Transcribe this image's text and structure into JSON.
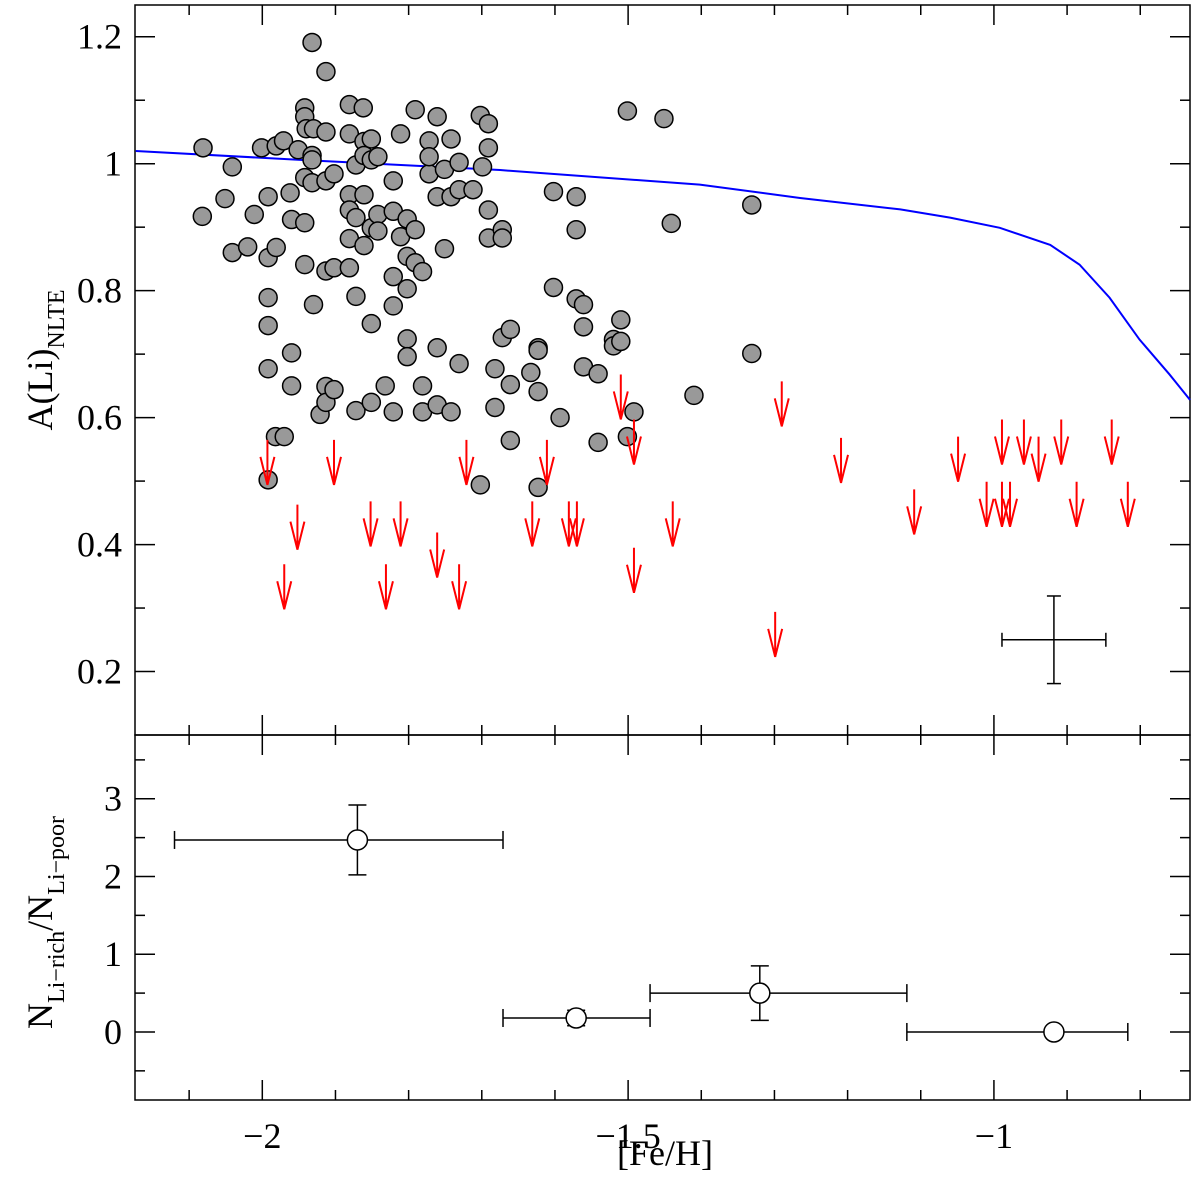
{
  "chart_data": [
    {
      "type": "scatter",
      "ylabel": "A(Li)",
      "ylabel_sub": "NLTE",
      "xlim": [
        -2.174,
        -0.732
      ],
      "ylim": [
        0.1,
        1.25
      ],
      "yticks": [
        0.2,
        0.4,
        0.6,
        0.8,
        1,
        1.2
      ],
      "yminor": [
        0.3,
        0.5,
        0.7,
        0.9,
        1.1
      ],
      "points": {
        "color": "#999999",
        "x": [
          -2.081,
          -2.082,
          -2.041,
          -2.051,
          -2.041,
          -2.02,
          -2.011,
          -2.001,
          -1.992,
          -1.992,
          -1.981,
          -1.992,
          -1.992,
          -1.992,
          -1.982,
          -1.97,
          -1.992,
          -1.981,
          -1.971,
          -1.962,
          -1.96,
          -1.96,
          -1.96,
          -1.951,
          -1.942,
          -1.942,
          -1.94,
          -1.942,
          -1.942,
          -1.942,
          -1.932,
          -1.932,
          -1.932,
          -1.932,
          -1.93,
          -1.93,
          -1.921,
          -1.913,
          -1.913,
          -1.913,
          -1.913,
          -1.913,
          -1.913,
          -1.902,
          -1.902,
          -1.902,
          -1.881,
          -1.881,
          -1.881,
          -1.881,
          -1.881,
          -1.881,
          -1.872,
          -1.872,
          -1.872,
          -1.872,
          -1.862,
          -1.861,
          -1.861,
          -1.861,
          -1.861,
          -1.851,
          -1.851,
          -1.851,
          -1.851,
          -1.851,
          -1.842,
          -1.842,
          -1.842,
          -1.832,
          -1.821,
          -1.821,
          -1.821,
          -1.821,
          -1.821,
          -1.811,
          -1.811,
          -1.802,
          -1.802,
          -1.802,
          -1.802,
          -1.802,
          -1.791,
          -1.791,
          -1.791,
          -1.781,
          -1.781,
          -1.781,
          -1.772,
          -1.772,
          -1.772,
          -1.761,
          -1.761,
          -1.761,
          -1.761,
          -1.751,
          -1.751,
          -1.742,
          -1.742,
          -1.742,
          -1.731,
          -1.731,
          -1.731,
          -1.712,
          -1.702,
          -1.702,
          -1.699,
          -1.691,
          -1.691,
          -1.691,
          -1.691,
          -1.682,
          -1.682,
          -1.672,
          -1.672,
          -1.672,
          -1.661,
          -1.661,
          -1.661,
          -1.633,
          -1.623,
          -1.623,
          -1.623,
          -1.623,
          -1.602,
          -1.602,
          -1.593,
          -1.571,
          -1.571,
          -1.571,
          -1.561,
          -1.561,
          -1.561,
          -1.541,
          -1.541,
          -1.52,
          -1.52,
          -1.51,
          -1.51,
          -1.501,
          -1.501,
          -1.492,
          -1.451,
          -1.441,
          -1.41,
          -1.331,
          -1.331
        ],
        "y": [
          1.025,
          0.917,
          0.995,
          0.945,
          0.86,
          0.869,
          0.92,
          1.025,
          0.948,
          0.852,
          0.868,
          0.789,
          0.745,
          0.677,
          0.57,
          0.57,
          0.502,
          1.028,
          1.036,
          0.954,
          0.912,
          0.702,
          0.65,
          1.022,
          1.088,
          1.074,
          1.055,
          0.978,
          0.907,
          0.841,
          1.191,
          1.013,
          1.006,
          0.97,
          0.778,
          1.055,
          0.605,
          1.145,
          1.05,
          0.973,
          0.831,
          0.649,
          0.624,
          0.984,
          0.836,
          0.644,
          1.093,
          1.047,
          0.951,
          0.927,
          0.882,
          0.836,
          0.998,
          0.915,
          0.791,
          0.611,
          1.088,
          1.035,
          1.013,
          0.951,
          0.871,
          1.039,
          1.006,
          0.899,
          0.748,
          0.624,
          1.011,
          0.92,
          0.894,
          0.65,
          0.973,
          0.925,
          0.822,
          0.776,
          0.609,
          1.047,
          0.885,
          0.913,
          0.854,
          0.803,
          0.724,
          0.696,
          1.085,
          0.896,
          0.844,
          0.83,
          0.65,
          0.609,
          1.036,
          0.984,
          1.011,
          1.074,
          0.948,
          0.71,
          0.62,
          0.991,
          0.866,
          1.039,
          0.948,
          0.609,
          0.959,
          1.002,
          0.685,
          0.959,
          1.076,
          0.494,
          0.995,
          1.063,
          1.025,
          0.927,
          0.883,
          0.677,
          0.616,
          0.896,
          0.883,
          0.726,
          0.739,
          0.652,
          0.564,
          0.671,
          0.71,
          0.706,
          0.641,
          0.49,
          0.956,
          0.805,
          0.6,
          0.948,
          0.896,
          0.787,
          0.778,
          0.743,
          0.68,
          0.669,
          0.561,
          0.723,
          0.713,
          0.72,
          0.754,
          1.083,
          0.57,
          0.609,
          1.071,
          0.906,
          0.635,
          0.935,
          0.701
        ]
      },
      "limits": {
        "color": "#ff0000",
        "x": [
          -1.993,
          -1.902,
          -1.952,
          -1.97,
          -1.852,
          -1.811,
          -1.831,
          -1.761,
          -1.731,
          -1.721,
          -1.631,
          -1.611,
          -1.581,
          -1.57,
          -1.51,
          -1.492,
          -1.492,
          -1.439,
          -1.29,
          -1.299,
          -1.209,
          -1.109,
          -1.049,
          -1.01,
          -0.989,
          -0.989,
          -0.978,
          -0.959,
          -0.939,
          -0.908,
          -0.887,
          -0.839,
          -0.817
        ],
        "y": [
          0.565,
          0.565,
          0.463,
          0.369,
          0.468,
          0.468,
          0.369,
          0.419,
          0.369,
          0.565,
          0.468,
          0.565,
          0.468,
          0.468,
          0.668,
          0.597,
          0.395,
          0.468,
          0.657,
          0.294,
          0.568,
          0.487,
          0.57,
          0.499,
          0.597,
          0.499,
          0.499,
          0.597,
          0.57,
          0.597,
          0.499,
          0.597,
          0.499
        ]
      },
      "curve": {
        "color": "#0000ff",
        "x": [
          -2.173,
          -1.948,
          -1.675,
          -1.402,
          -1.265,
          -1.128,
          -1.06,
          -0.992,
          -0.923,
          -0.883,
          -0.842,
          -0.801,
          -0.76,
          -0.732
        ],
        "y": [
          1.02,
          1.006,
          0.99,
          0.967,
          0.946,
          0.928,
          0.915,
          0.899,
          0.872,
          0.841,
          0.789,
          0.723,
          0.668,
          0.628
        ]
      },
      "errorbar": {
        "x": -0.918,
        "y": 0.25,
        "xerr": 0.071,
        "yerr": 0.069
      }
    },
    {
      "type": "errorbar",
      "xlabel": "[Fe/H]",
      "ylabel_parts": [
        {
          "text": "N"
        },
        {
          "text": "Li−rich",
          "sub": true
        },
        {
          "text": "/N"
        },
        {
          "text": "Li−poor",
          "sub": true
        }
      ],
      "xlim": [
        -2.174,
        -0.732
      ],
      "ylim": [
        -0.875,
        3.82
      ],
      "xticks": [
        {
          "value": -2,
          "label": "−2"
        },
        {
          "value": -1.5,
          "label": "−1.5"
        },
        {
          "value": -1,
          "label": "−1"
        }
      ],
      "xminor": [
        -2.1,
        -1.9,
        -1.8,
        -1.7,
        -1.6,
        -1.4,
        -1.3,
        -1.2,
        -1.1,
        -0.9,
        -0.8
      ],
      "yticks": [
        0,
        1,
        2,
        3
      ],
      "yminor": [
        -0.5,
        0.5,
        1.5,
        2.5,
        3.5
      ],
      "x": [
        -1.87,
        -1.571,
        -1.32,
        -0.918
      ],
      "values": [
        2.47,
        0.18,
        0.5,
        0
      ],
      "xmin": [
        -2.12,
        -1.671,
        -1.47,
        -1.119
      ],
      "xmax": [
        -1.671,
        -1.47,
        -1.119,
        -0.817
      ],
      "yerr": [
        0.45,
        0.1,
        0.35,
        null
      ]
    }
  ]
}
